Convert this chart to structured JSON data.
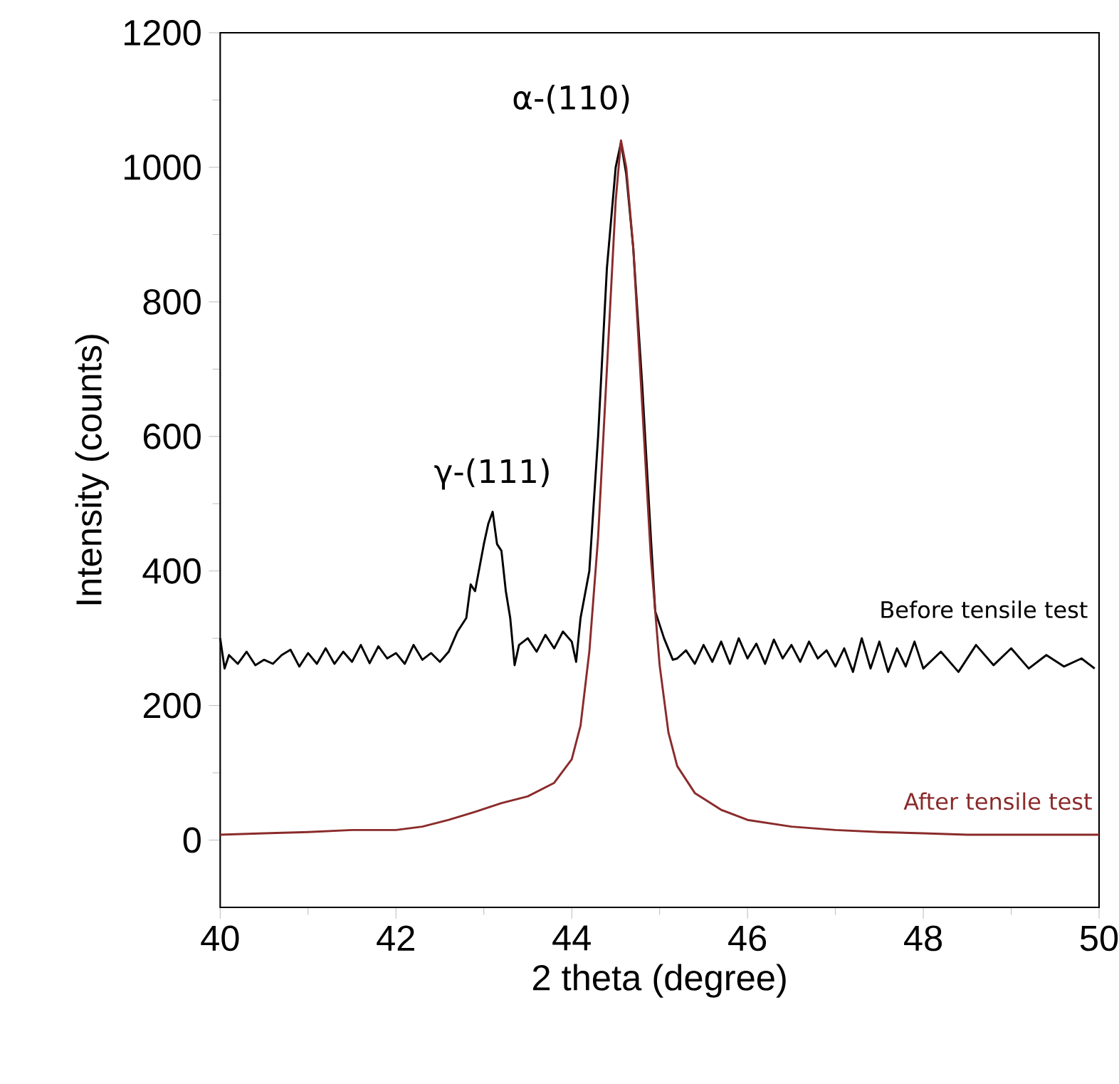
{
  "chart_data": {
    "type": "line",
    "xlabel": "2 theta (degree)",
    "ylabel": "Intensity (counts)",
    "xlim": [
      40,
      50
    ],
    "ylim": [
      -100,
      1200
    ],
    "xticks": [
      40,
      42,
      44,
      46,
      48,
      50
    ],
    "yticks": [
      0,
      200,
      400,
      600,
      800,
      1000,
      1200
    ],
    "legend": false,
    "grid": false,
    "marker": "none",
    "line_style": "solid",
    "annotations": [
      "γ-(111)",
      "α-(110)"
    ],
    "series": [
      {
        "name": "Before tensile test",
        "color": "#000000",
        "x": [
          40.0,
          40.05,
          40.1,
          40.2,
          40.3,
          40.4,
          40.5,
          40.6,
          40.7,
          40.8,
          40.9,
          41.0,
          41.1,
          41.2,
          41.3,
          41.4,
          41.5,
          41.6,
          41.7,
          41.8,
          41.9,
          42.0,
          42.1,
          42.2,
          42.3,
          42.4,
          42.5,
          42.6,
          42.7,
          42.8,
          42.85,
          42.9,
          43.0,
          43.05,
          43.1,
          43.15,
          43.2,
          43.25,
          43.3,
          43.35,
          43.4,
          43.5,
          43.6,
          43.7,
          43.8,
          43.9,
          44.0,
          44.05,
          44.1,
          44.2,
          44.3,
          44.4,
          44.5,
          44.56,
          44.62,
          44.7,
          44.8,
          44.9,
          44.95,
          45.05,
          45.15,
          45.2,
          45.3,
          45.4,
          45.5,
          45.6,
          45.7,
          45.8,
          45.9,
          46.0,
          46.1,
          46.2,
          46.3,
          46.4,
          46.5,
          46.6,
          46.7,
          46.8,
          46.9,
          47.0,
          47.1,
          47.2,
          47.3,
          47.4,
          47.5,
          47.6,
          47.7,
          47.8,
          47.9,
          48.0,
          48.2,
          48.4,
          48.6,
          48.8,
          49.0,
          49.2,
          49.4,
          49.6,
          49.8,
          49.95
        ],
        "values": [
          300,
          255,
          275,
          262,
          280,
          260,
          268,
          262,
          275,
          283,
          258,
          278,
          262,
          285,
          262,
          280,
          265,
          290,
          263,
          288,
          270,
          278,
          262,
          290,
          268,
          278,
          265,
          280,
          310,
          330,
          380,
          370,
          440,
          470,
          488,
          440,
          430,
          370,
          330,
          260,
          290,
          300,
          280,
          305,
          285,
          310,
          295,
          265,
          330,
          400,
          600,
          850,
          1000,
          1037,
          990,
          880,
          680,
          450,
          340,
          300,
          268,
          270,
          282,
          262,
          290,
          265,
          295,
          262,
          300,
          270,
          292,
          262,
          298,
          270,
          290,
          265,
          295,
          270,
          282,
          258,
          285,
          250,
          300,
          255,
          295,
          250,
          285,
          258,
          295,
          255,
          280,
          250,
          290,
          260,
          285,
          255,
          275,
          258,
          270,
          255
        ]
      },
      {
        "name": "After tensile test",
        "color": "#8b2b2b",
        "x": [
          40,
          40.5,
          41,
          41.5,
          42,
          42.3,
          42.6,
          42.9,
          43.2,
          43.5,
          43.8,
          44.0,
          44.1,
          44.2,
          44.3,
          44.4,
          44.5,
          44.56,
          44.62,
          44.7,
          44.8,
          44.9,
          45.0,
          45.1,
          45.2,
          45.4,
          45.7,
          46.0,
          46.5,
          47,
          47.5,
          48,
          48.5,
          49,
          49.5,
          50
        ],
        "values": [
          8,
          10,
          12,
          15,
          15,
          20,
          30,
          42,
          55,
          65,
          85,
          120,
          170,
          280,
          450,
          700,
          950,
          1040,
          1000,
          880,
          650,
          420,
          260,
          160,
          110,
          70,
          45,
          30,
          20,
          15,
          12,
          10,
          8,
          8,
          8,
          8
        ]
      }
    ]
  }
}
